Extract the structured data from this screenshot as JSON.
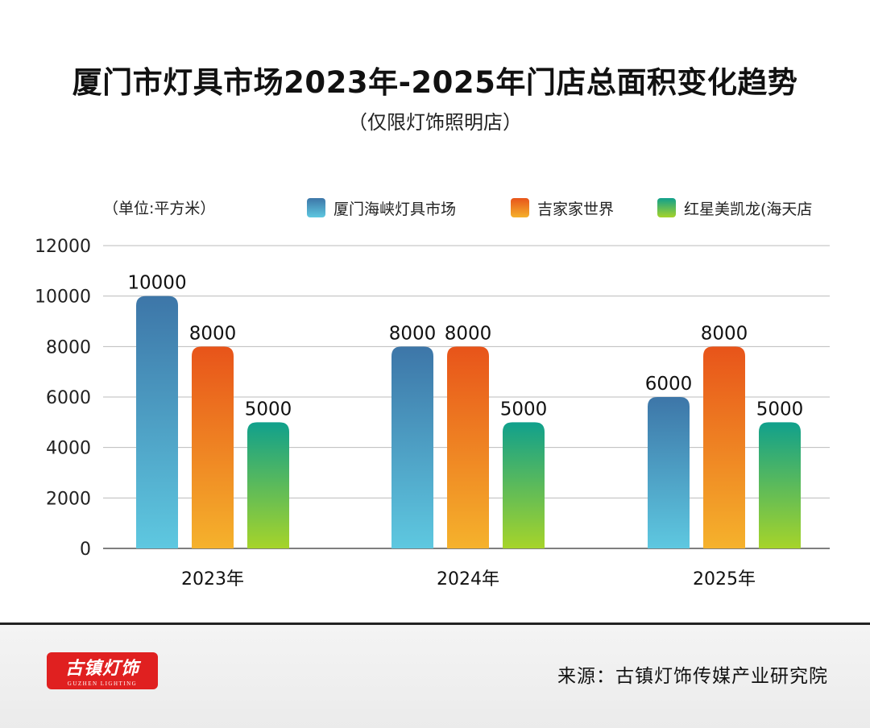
{
  "title": "厦门市灯具市场2023年-2025年门店总面积变化趋势",
  "subtitle": "（仅限灯饰照明店）",
  "unit_label": "（单位:平方米）",
  "footer": {
    "logo_text": "古镇灯饰",
    "logo_subtext": "GUZHEN LIGHTING",
    "source": "来源：古镇灯饰传媒产业研究院"
  },
  "chart_data": {
    "type": "bar",
    "categories": [
      "2023年",
      "2024年",
      "2025年"
    ],
    "series": [
      {
        "name": "厦门海峡灯具市场",
        "values": [
          10000,
          8000,
          6000
        ],
        "color_top": "#3d76a8",
        "color_bottom": "#5ec8e0"
      },
      {
        "name": "吉家家世界",
        "values": [
          8000,
          8000,
          8000
        ],
        "color_top": "#e8541a",
        "color_bottom": "#f5b22c"
      },
      {
        "name": "红星美凯龙(海天店",
        "values": [
          5000,
          5000,
          5000
        ],
        "color_top": "#10a08c",
        "color_bottom": "#a6d42a"
      }
    ],
    "yticks": [
      0,
      2000,
      4000,
      6000,
      8000,
      10000,
      12000
    ],
    "ylim": [
      0,
      12000
    ],
    "grid": true,
    "legend_position": "top-right",
    "data_labels": true
  }
}
